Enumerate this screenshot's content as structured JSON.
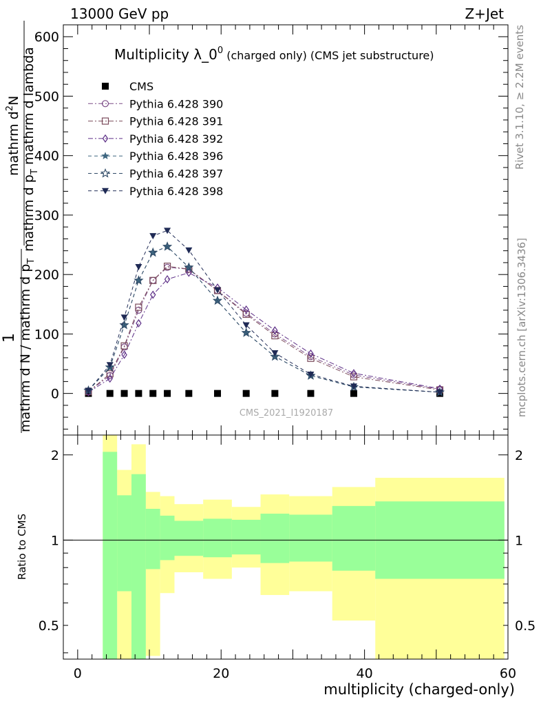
{
  "header": {
    "left": "13000 GeV pp",
    "right": "Z+Jet"
  },
  "side_labels": {
    "top": "Rivet 3.1.10, ≥ 2.2M events",
    "bottom": "mcplots.cern.ch [arXiv:1306.3436]"
  },
  "watermark": "CMS_2021_I1920187",
  "colors": {
    "cms": "#000000",
    "band_inner": "#99ff99",
    "band_outer": "#ffff99",
    "p390": "#7a4a86",
    "p391": "#7a4a5a",
    "p392": "#5c2e86",
    "p396": "#3e6680",
    "p397": "#2f4a66",
    "p398": "#1f2a55"
  },
  "chart_data": [
    {
      "type": "line",
      "title_main": "Multiplicity λ_0",
      "title_sup": "0",
      "title_sub": " (charged only) (CMS jet substructure)",
      "ylabel_num": "1",
      "ylabel_den": "mathrm d N / mathrm d p",
      "ylabel_den_sub": "T",
      "ylabel_num2": "mathrm d",
      "ylabel_num2_sup": "2",
      "ylabel_num2_tail": "N",
      "ylabel_den2": "mathrm d p",
      "ylabel_den2_sub": "T",
      "ylabel_den2_tail": " mathrm d lambda",
      "xlim": [
        -2,
        60
      ],
      "ylim": [
        -70,
        620
      ],
      "yticks": [
        0,
        100,
        200,
        300,
        400,
        500,
        600
      ],
      "grid": false,
      "legend_position": "top-left",
      "series": [
        {
          "name": "CMS",
          "key": "cms",
          "marker": "square-filled",
          "dash": "",
          "x": [
            1.5,
            4.5,
            6.5,
            8.5,
            10.5,
            12.5,
            15.5,
            19.5,
            23.5,
            27.5,
            32.5,
            38.5,
            50.5
          ],
          "y": [
            0,
            0,
            0,
            0,
            0,
            0,
            0,
            0,
            0,
            0,
            0,
            0,
            0
          ]
        },
        {
          "name": "Pythia 6.428 390",
          "key": "p390",
          "marker": "circle-open",
          "dash": "7,3,2,3",
          "x": [
            1.5,
            4.5,
            6.5,
            8.5,
            10.5,
            12.5,
            15.5,
            19.5,
            23.5,
            27.5,
            32.5,
            38.5,
            50.5
          ],
          "y": [
            3,
            30,
            78,
            140,
            190,
            212,
            209,
            173,
            135,
            100,
            62,
            31,
            7
          ]
        },
        {
          "name": "Pythia 6.428 391",
          "key": "p391",
          "marker": "square-open",
          "dash": "7,3,2,3",
          "x": [
            1.5,
            4.5,
            6.5,
            8.5,
            10.5,
            12.5,
            15.5,
            19.5,
            23.5,
            27.5,
            32.5,
            38.5,
            50.5
          ],
          "y": [
            3,
            33,
            80,
            145,
            190,
            214,
            209,
            173,
            133,
            97,
            59,
            28,
            6
          ]
        },
        {
          "name": "Pythia 6.428 392",
          "key": "p392",
          "marker": "diamond-open",
          "dash": "7,3,2,3",
          "x": [
            1.5,
            4.5,
            6.5,
            8.5,
            10.5,
            12.5,
            15.5,
            19.5,
            23.5,
            27.5,
            32.5,
            38.5,
            50.5
          ],
          "y": [
            2,
            25,
            65,
            118,
            166,
            192,
            203,
            178,
            141,
            106,
            67,
            34,
            8
          ]
        },
        {
          "name": "Pythia 6.428 396",
          "key": "p396",
          "marker": "star-filled",
          "dash": "5,4",
          "x": [
            1.5,
            4.5,
            6.5,
            8.5,
            10.5,
            12.5,
            15.5,
            19.5,
            23.5,
            27.5,
            32.5,
            38.5,
            50.5
          ],
          "y": [
            5,
            44,
            115,
            190,
            237,
            247,
            212,
            156,
            102,
            62,
            30,
            11,
            2
          ]
        },
        {
          "name": "Pythia 6.428 397",
          "key": "p397",
          "marker": "star-open",
          "dash": "5,4",
          "x": [
            1.5,
            4.5,
            6.5,
            8.5,
            10.5,
            12.5,
            15.5,
            19.5,
            23.5,
            27.5,
            32.5,
            38.5,
            50.5
          ],
          "y": [
            5,
            44,
            115,
            190,
            237,
            247,
            212,
            156,
            102,
            62,
            30,
            11,
            2
          ]
        },
        {
          "name": "Pythia 6.428 398",
          "key": "p398",
          "marker": "triangle-down-filled",
          "dash": "5,4",
          "x": [
            1.5,
            4.5,
            6.5,
            8.5,
            10.5,
            12.5,
            15.5,
            19.5,
            23.5,
            27.5,
            32.5,
            38.5,
            50.5
          ],
          "y": [
            5,
            48,
            128,
            213,
            265,
            274,
            241,
            174,
            115,
            68,
            32,
            12,
            2
          ]
        }
      ]
    },
    {
      "type": "area",
      "ylabel": "Ratio to CMS",
      "xlabel": "multiplicity (charged-only)",
      "xlim": [
        -2,
        60
      ],
      "xticks": [
        0,
        20,
        40,
        60
      ],
      "ylog": true,
      "ylim": [
        0.38,
        2.35
      ],
      "yticks": [
        0.5,
        1,
        2
      ],
      "reference_line": 1,
      "bins": [
        {
          "lo": 3.5,
          "hi": 5.5,
          "inner": [
            0.38,
            2.05
          ],
          "outer": [
            0.38,
            2.35
          ]
        },
        {
          "lo": 5.5,
          "hi": 7.5,
          "inner": [
            0.66,
            1.44
          ],
          "outer": [
            0.38,
            1.77
          ]
        },
        {
          "lo": 7.5,
          "hi": 9.5,
          "inner": [
            0.38,
            1.71
          ],
          "outer": [
            0.38,
            2.18
          ]
        },
        {
          "lo": 9.5,
          "hi": 11.5,
          "inner": [
            0.79,
            1.29
          ],
          "outer": [
            0.39,
            1.48
          ]
        },
        {
          "lo": 11.5,
          "hi": 13.5,
          "inner": [
            0.85,
            1.22
          ],
          "outer": [
            0.65,
            1.43
          ]
        },
        {
          "lo": 13.5,
          "hi": 17.5,
          "inner": [
            0.88,
            1.17
          ],
          "outer": [
            0.77,
            1.34
          ]
        },
        {
          "lo": 17.5,
          "hi": 21.5,
          "inner": [
            0.87,
            1.19
          ],
          "outer": [
            0.73,
            1.39
          ]
        },
        {
          "lo": 21.5,
          "hi": 25.5,
          "inner": [
            0.89,
            1.18
          ],
          "outer": [
            0.8,
            1.31
          ]
        },
        {
          "lo": 25.5,
          "hi": 29.5,
          "inner": [
            0.83,
            1.24
          ],
          "outer": [
            0.64,
            1.45
          ]
        },
        {
          "lo": 29.5,
          "hi": 35.5,
          "inner": [
            0.84,
            1.23
          ],
          "outer": [
            0.66,
            1.43
          ]
        },
        {
          "lo": 35.5,
          "hi": 41.5,
          "inner": [
            0.78,
            1.32
          ],
          "outer": [
            0.52,
            1.54
          ]
        },
        {
          "lo": 41.5,
          "hi": 59.5,
          "inner": [
            0.73,
            1.37
          ],
          "outer": [
            0.38,
            1.66
          ]
        }
      ]
    }
  ]
}
